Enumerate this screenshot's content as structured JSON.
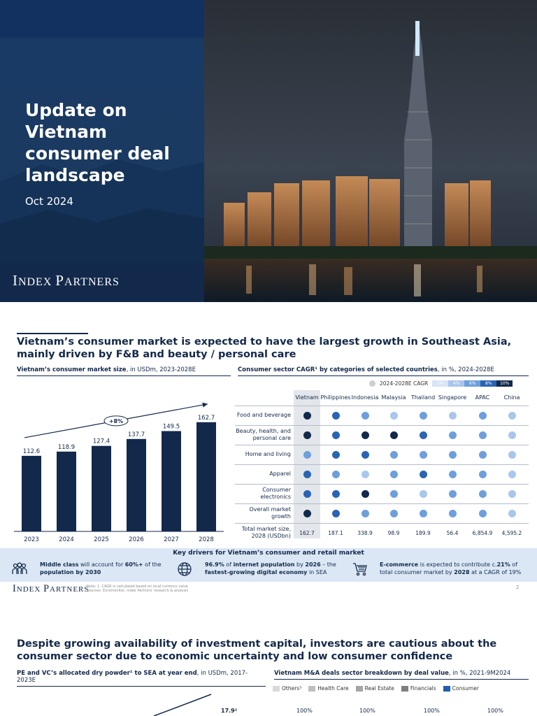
{
  "cover": {
    "title": "Update on Vietnam consumer deal landscape",
    "date": "Oct 2024",
    "logo_first": "I",
    "logo_first_rest": "NDEX ",
    "logo_second": "P",
    "logo_second_rest": "ARTNERS"
  },
  "slide2": {
    "title": "Vietnam’s consumer market is expected to have the largest growth in Southeast Asia, mainly driven by F&B and beauty / personal care",
    "left_subtitle_bold": "Vietnam’s consumer market size",
    "left_subtitle_rest": ", in USDm, 2023-2028E",
    "cagr_label": "+8%",
    "chart_data": {
      "type": "bar",
      "categories": [
        "2023",
        "2024",
        "2025",
        "2026",
        "2027",
        "2028"
      ],
      "values": [
        112.6,
        118.9,
        127.4,
        137.7,
        149.5,
        162.7
      ],
      "ylim": [
        0,
        175
      ],
      "grid": false
    },
    "right_subtitle_bold": "Consumer sector CAGR¹ by categories of selected countries",
    "right_subtitle_rest": ", in %, 2024-2028E",
    "legend_label": "2024-2028E CAGR",
    "scale_labels": [
      "2%",
      "4%",
      "6%",
      "8%",
      "10%"
    ],
    "scale_colors": [
      "#d6e4f6",
      "#a9c6ec",
      "#6d9fdc",
      "#2a64b4",
      "#13294b"
    ],
    "countries": [
      "Vietnam",
      "Philippines",
      "Indonesia",
      "Malaysia",
      "Thailand",
      "Singapore",
      "APAC",
      "China"
    ],
    "rows": [
      {
        "label": "Food and beverage",
        "levels": [
          5,
          4,
          3,
          2,
          3,
          2,
          3,
          2
        ]
      },
      {
        "label": "Beauty, health, and personal care",
        "levels": [
          5,
          4,
          5,
          5,
          4,
          3,
          3,
          2
        ]
      },
      {
        "label": "Home and living",
        "levels": [
          3,
          4,
          4,
          3,
          3,
          3,
          3,
          2
        ]
      },
      {
        "label": "Apparel",
        "levels": [
          4,
          3,
          2,
          3,
          4,
          3,
          3,
          2
        ]
      },
      {
        "label": "Consumer electronics",
        "levels": [
          4,
          4,
          5,
          3,
          2,
          3,
          3,
          2
        ]
      },
      {
        "label": "Overall market growth",
        "levels": [
          5,
          4,
          3,
          3,
          3,
          3,
          3,
          2
        ]
      }
    ],
    "total_label": "Total market size, 2028 (USDbn)",
    "totals": [
      "162.7",
      "187.1",
      "338.9",
      "98.9",
      "189.9",
      "56.4",
      "6,854.9",
      "4,595.2"
    ],
    "drivers_title": "Key drivers for Vietnam’s consumer and retail market",
    "driver1_a": "Middle class",
    "driver1_b": " will account for ",
    "driver1_c": "60%+",
    "driver1_d": " of the ",
    "driver1_e": "population by 2030",
    "driver2_a": "96.9%",
    "driver2_b": " of ",
    "driver2_c": "internet population",
    "driver2_d": " by ",
    "driver2_e": "2026",
    "driver2_f": " – the ",
    "driver2_g": "fastest-growing digital economy",
    "driver2_h": " in SEA",
    "driver3_a": "E-commerce",
    "driver3_b": " is expected to contribute c.",
    "driver3_c": "21%",
    "driver3_d": " of total consumer market by ",
    "driver3_e": "2028",
    "driver3_f": " at a CAGR of 19%",
    "note_line1": "Note: 1. CAGR is calculated based on local currency value",
    "note_line2": "Sources: Euromonitor, Index Partners' research & analysis",
    "page_number": "2"
  },
  "slide3": {
    "title": "Despite growing availability of investment capital, investors are cautious about the consumer sector due to economic uncertainty and low consumer confidence",
    "left_subtitle_bold": "PE and VC’s allocated dry powder¹ to SEA at year end",
    "left_subtitle_rest": ", in USDm, 2017-2023E",
    "right_subtitle_bold": "Vietnam M&A deals sector breakdown by deal value",
    "right_subtitle_rest": ", in %, 2021-9M2024",
    "legend": [
      {
        "label": "Others³",
        "color": "#d9d9d9"
      },
      {
        "label": "Health Care",
        "color": "#bfbfbf"
      },
      {
        "label": "Real Estate",
        "color": "#a6a6a6"
      },
      {
        "label": "Financials",
        "color": "#7f7f7f"
      },
      {
        "label": "Consumer",
        "color": "#1f5fae"
      }
    ],
    "top_value": "17.9²",
    "pct_labels": [
      "100%",
      "100%",
      "100%",
      "100%"
    ]
  }
}
